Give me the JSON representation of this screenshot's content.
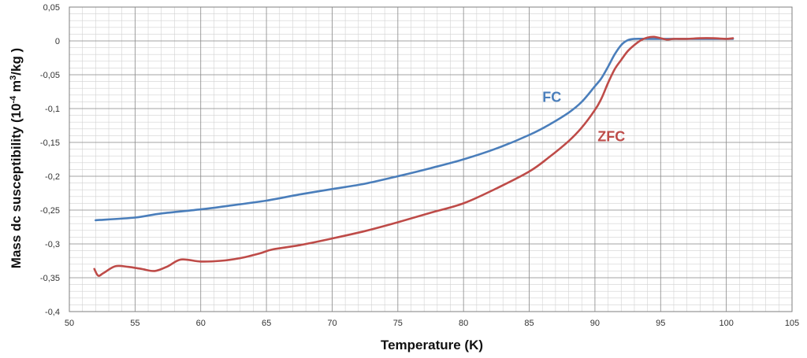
{
  "chart_data": {
    "type": "line",
    "title": "",
    "xlabel": "Temperature (K)",
    "ylabel_main": "Mass dc susceptibility (10",
    "ylabel_sup": "-4",
    "ylabel_mid": " m",
    "ylabel_sup2": "3",
    "ylabel_end": "/kg )",
    "xlim": [
      50,
      105
    ],
    "ylim": [
      -0.4,
      0.05
    ],
    "x_major_step": 5,
    "y_major_step": 0.05,
    "x_minor_step": 1,
    "y_minor_step": 0.01,
    "x_ticks": [
      "50",
      "55",
      "60",
      "65",
      "70",
      "75",
      "80",
      "85",
      "90",
      "95",
      "100",
      "105"
    ],
    "y_ticks": [
      "0,05",
      "0",
      "-0,05",
      "-0,1",
      "-0,15",
      "-0,2",
      "-0,25",
      "-0,3",
      "-0,35",
      "-0,4"
    ],
    "grid": true,
    "legend": "none",
    "series": [
      {
        "name": "FC",
        "color": "#4a7ebb",
        "label_at": [
          86.0,
          -0.09
        ],
        "points": [
          [
            52,
            -0.265
          ],
          [
            55,
            -0.261
          ],
          [
            57,
            -0.255
          ],
          [
            60,
            -0.249
          ],
          [
            62,
            -0.244
          ],
          [
            65,
            -0.236
          ],
          [
            67.5,
            -0.227
          ],
          [
            70,
            -0.219
          ],
          [
            72.5,
            -0.211
          ],
          [
            75,
            -0.2
          ],
          [
            77.5,
            -0.188
          ],
          [
            80,
            -0.175
          ],
          [
            82.5,
            -0.159
          ],
          [
            85,
            -0.139
          ],
          [
            86.5,
            -0.124
          ],
          [
            88,
            -0.106
          ],
          [
            89,
            -0.09
          ],
          [
            90,
            -0.067
          ],
          [
            90.5,
            -0.055
          ],
          [
            91,
            -0.038
          ],
          [
            91.5,
            -0.02
          ],
          [
            92,
            -0.006
          ],
          [
            92.5,
            0.001
          ],
          [
            93,
            0.003
          ],
          [
            94,
            0.003
          ],
          [
            95,
            0.003
          ],
          [
            97,
            0.003
          ],
          [
            100,
            0.003
          ],
          [
            100.5,
            0.003
          ]
        ]
      },
      {
        "name": "ZFC",
        "color": "#be4b48",
        "label_at": [
          90.2,
          -0.148
        ],
        "points": [
          [
            51.9,
            -0.337
          ],
          [
            52.2,
            -0.347
          ],
          [
            52.6,
            -0.343
          ],
          [
            53.5,
            -0.333
          ],
          [
            54.5,
            -0.334
          ],
          [
            55.5,
            -0.337
          ],
          [
            56.5,
            -0.34
          ],
          [
            57.5,
            -0.333
          ],
          [
            58.5,
            -0.323
          ],
          [
            60,
            -0.326
          ],
          [
            61.5,
            -0.325
          ],
          [
            63,
            -0.321
          ],
          [
            64.5,
            -0.314
          ],
          [
            65.5,
            -0.308
          ],
          [
            67.5,
            -0.302
          ],
          [
            70,
            -0.292
          ],
          [
            72.5,
            -0.281
          ],
          [
            75,
            -0.268
          ],
          [
            77.5,
            -0.254
          ],
          [
            80,
            -0.24
          ],
          [
            82.5,
            -0.218
          ],
          [
            85,
            -0.193
          ],
          [
            86.5,
            -0.172
          ],
          [
            88,
            -0.148
          ],
          [
            89,
            -0.128
          ],
          [
            90,
            -0.102
          ],
          [
            90.5,
            -0.085
          ],
          [
            91,
            -0.062
          ],
          [
            91.5,
            -0.042
          ],
          [
            92,
            -0.028
          ],
          [
            92.5,
            -0.015
          ],
          [
            93,
            -0.006
          ],
          [
            93.5,
            0.001
          ],
          [
            94,
            0.005
          ],
          [
            94.5,
            0.006
          ],
          [
            95,
            0.004
          ],
          [
            95.5,
            0.002
          ],
          [
            96,
            0.003
          ],
          [
            97,
            0.003
          ],
          [
            98,
            0.004
          ],
          [
            99,
            0.004
          ],
          [
            100,
            0.003
          ],
          [
            100.5,
            0.004
          ]
        ]
      }
    ]
  }
}
